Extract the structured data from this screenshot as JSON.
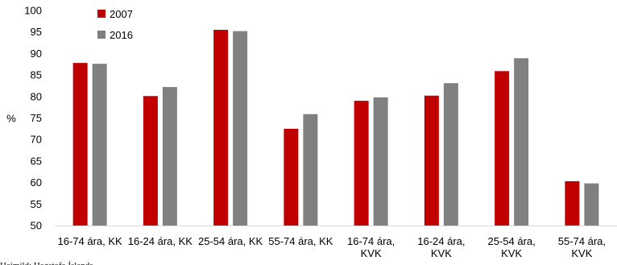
{
  "chart_data": {
    "type": "bar",
    "ylabel": "%",
    "ylim": [
      50,
      100
    ],
    "yticks": [
      50,
      55,
      60,
      65,
      70,
      75,
      80,
      85,
      90,
      95,
      100
    ],
    "grid": false,
    "legend_position": "top-left",
    "categories": [
      [
        "16-74 ára, KK"
      ],
      [
        "16-24 ára, KK"
      ],
      [
        "25-54 ára, KK"
      ],
      [
        "55-74 ára, KK"
      ],
      [
        "16-74 ára,",
        "KVK"
      ],
      [
        "16-24 ára,",
        "KVK"
      ],
      [
        "25-54 ára,",
        "KVK"
      ],
      [
        "55-74 ára,",
        "KVK"
      ]
    ],
    "series": [
      {
        "name": "2007",
        "color": "#c00000",
        "values": [
          87.8,
          80.1,
          95.5,
          72.5,
          79.0,
          80.2,
          85.9,
          60.3
        ]
      },
      {
        "name": "2016",
        "color": "#808080",
        "values": [
          87.6,
          82.2,
          95.2,
          75.9,
          79.8,
          83.1,
          88.9,
          59.8
        ]
      }
    ],
    "source": "Heimild: Hagstofa Íslands"
  }
}
